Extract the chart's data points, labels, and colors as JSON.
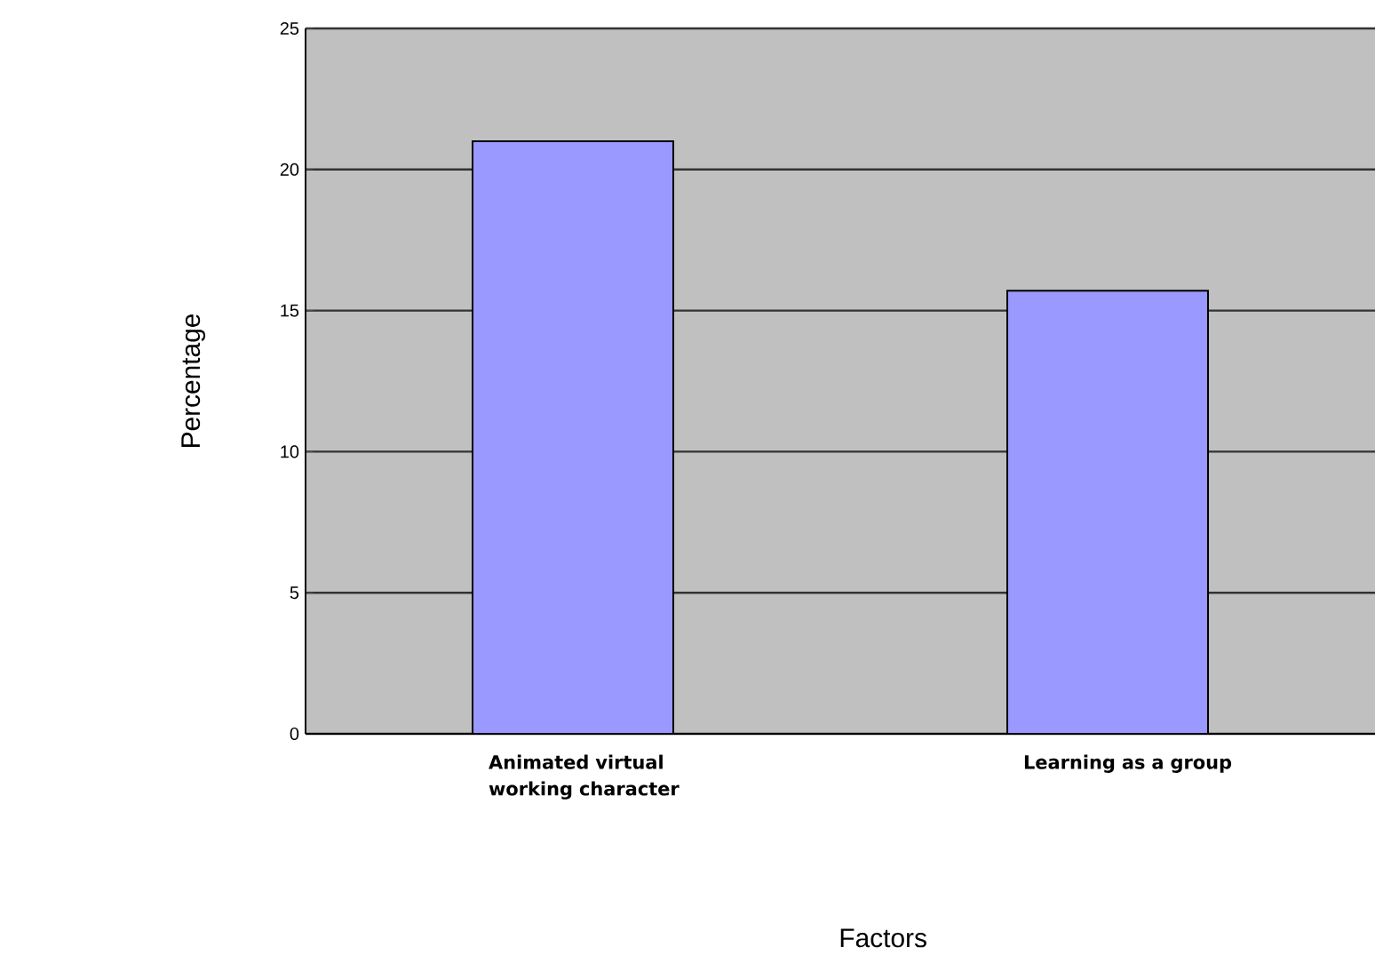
{
  "chart_data": {
    "type": "bar",
    "xlabel": "Factors",
    "ylabel": "Percentage",
    "categories": [
      "Animated virtual working character",
      "Learning as a group"
    ],
    "values": [
      21,
      15.7
    ],
    "color": "#9999ff",
    "ylim": [
      0,
      25
    ],
    "yticks": [
      0,
      5,
      10,
      15,
      20,
      25
    ],
    "grid": "y"
  }
}
